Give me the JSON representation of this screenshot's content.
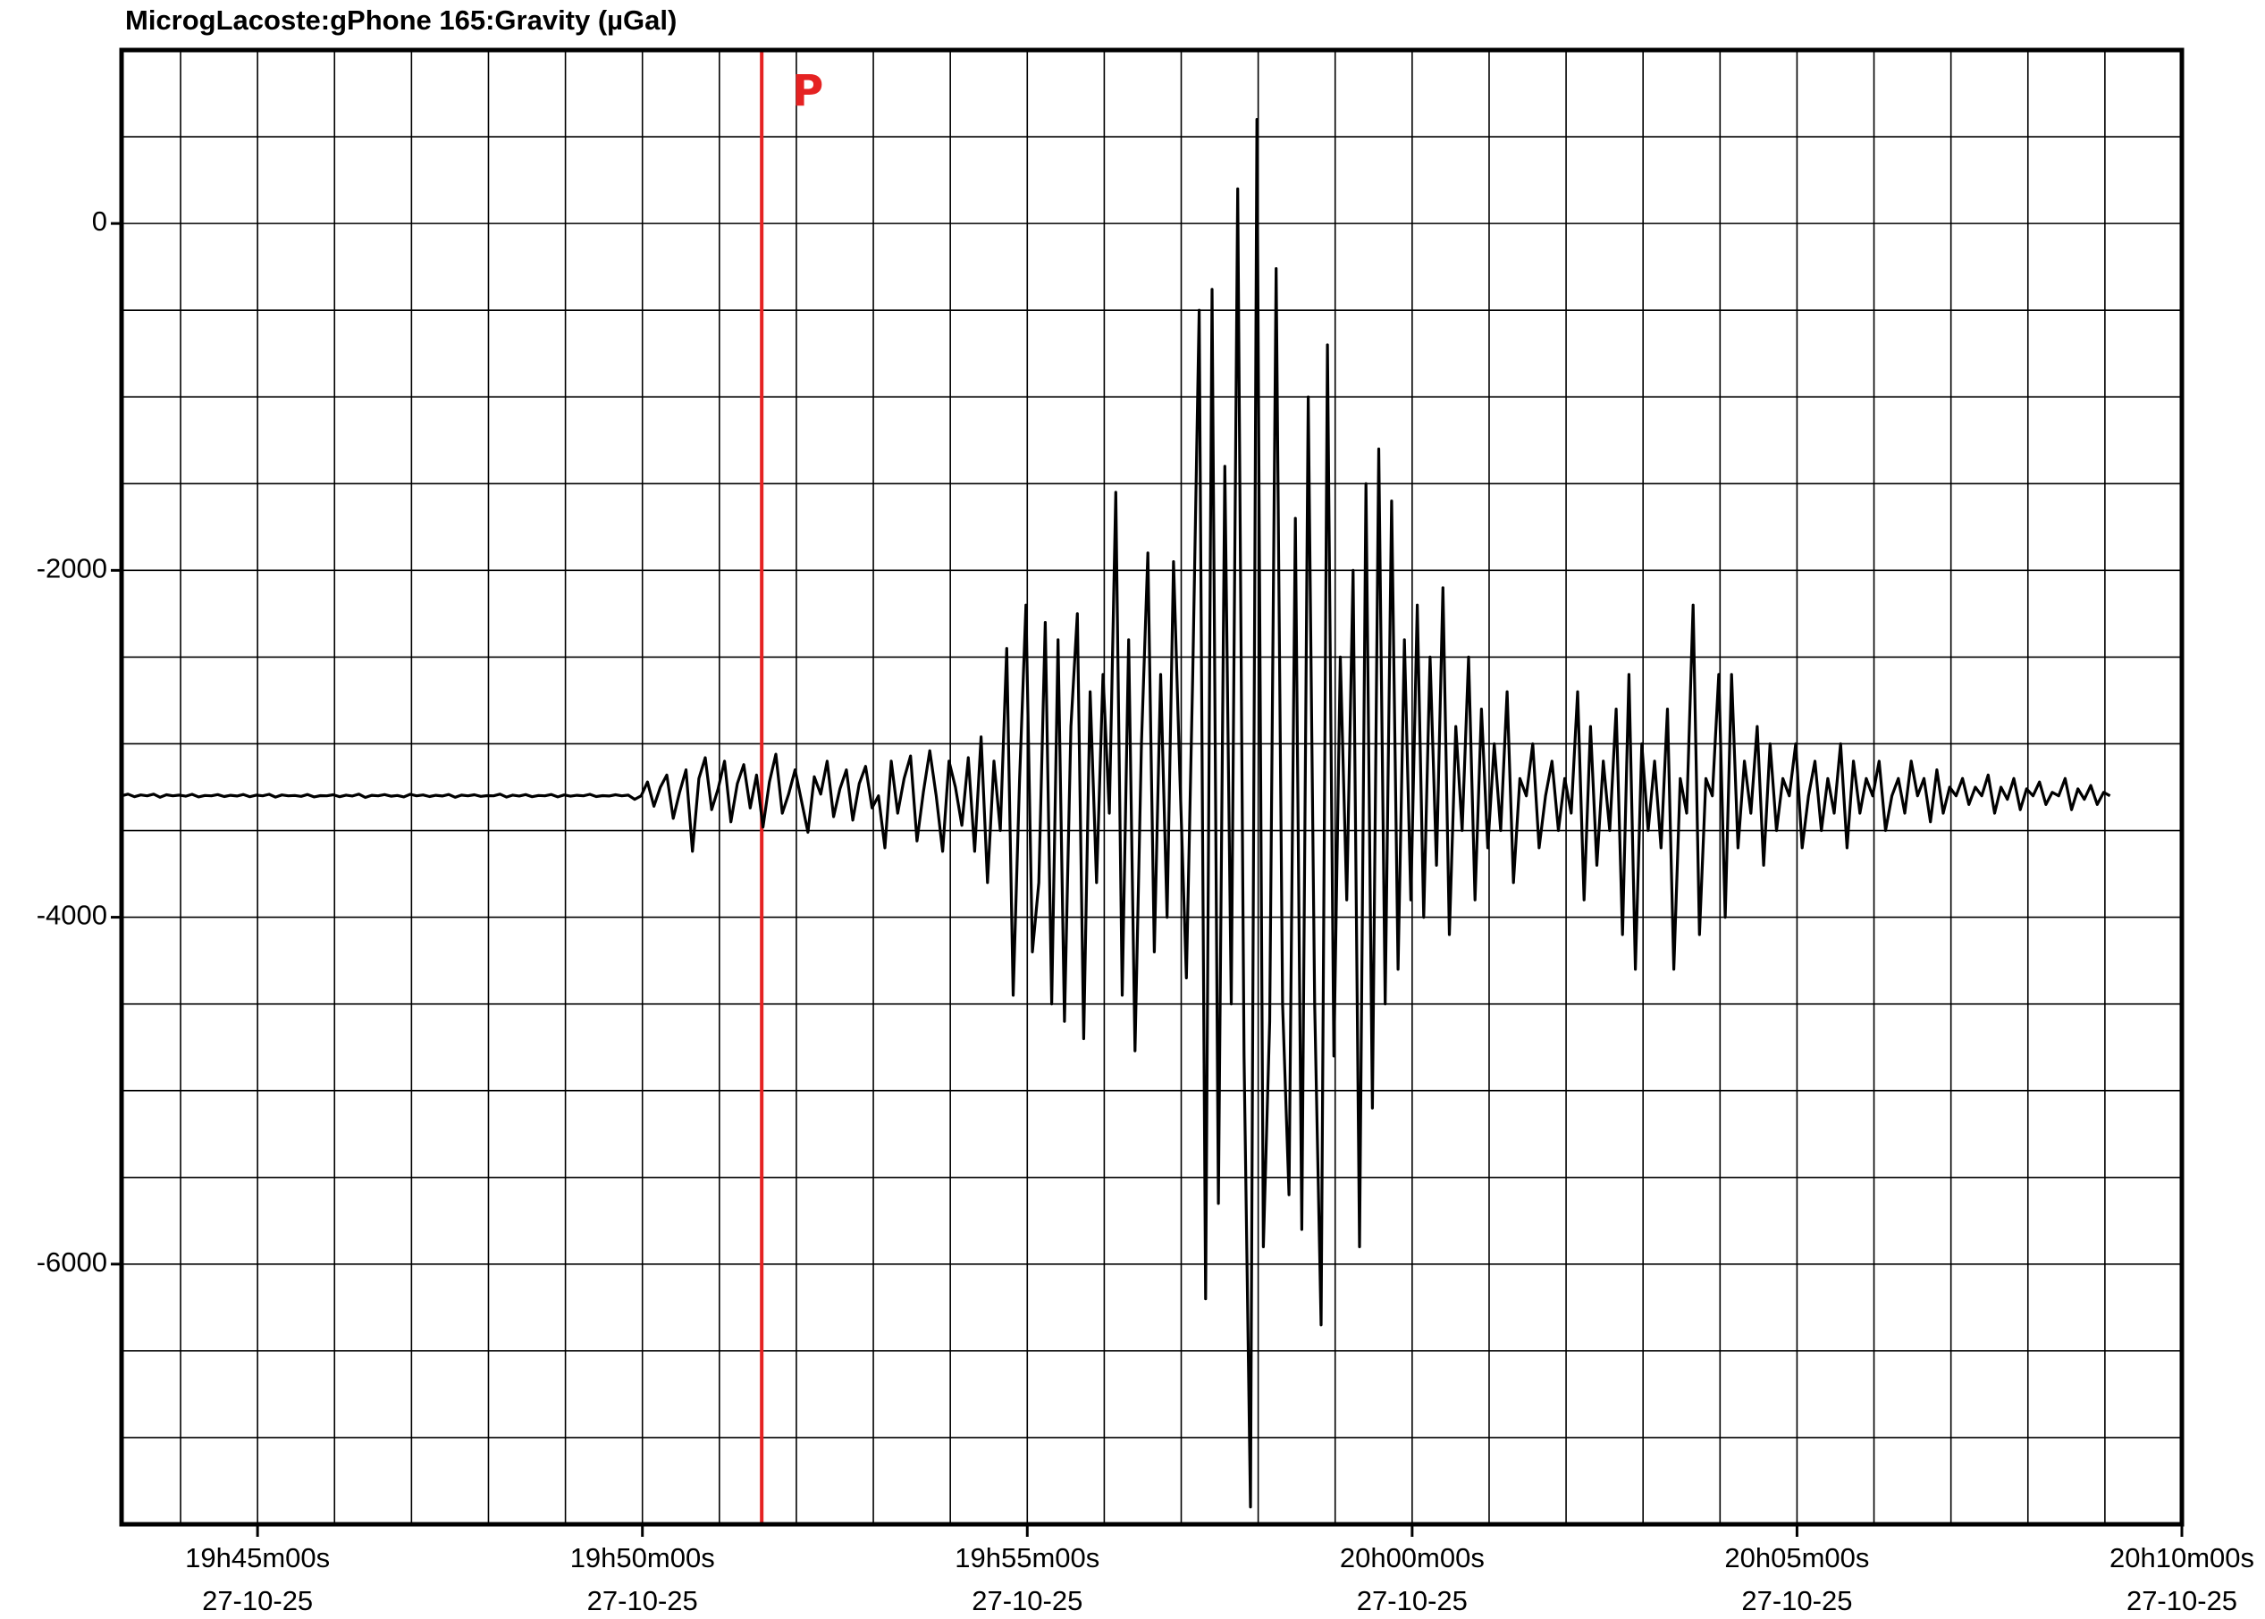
{
  "chart_data": {
    "type": "line",
    "title": "MicrogLacoste:gPhone 165:Gravity (µGal)",
    "xlabel": "",
    "ylabel": "",
    "x_range": [
      "19h43m14s",
      "20h10m00s"
    ],
    "ylim": [
      -7500,
      1000
    ],
    "grid": true,
    "y_ticks": [
      {
        "value": 0,
        "label": "0"
      },
      {
        "value": -2000,
        "label": "-2000"
      },
      {
        "value": -4000,
        "label": "-4000"
      },
      {
        "value": -6000,
        "label": "-6000"
      }
    ],
    "x_ticks": [
      {
        "time": "19h45m00s",
        "date": "27-10-25"
      },
      {
        "time": "19h50m00s",
        "date": "27-10-25"
      },
      {
        "time": "19h55m00s",
        "date": "27-10-25"
      },
      {
        "time": "20h00m00s",
        "date": "27-10-25"
      },
      {
        "time": "20h05m00s",
        "date": "27-10-25"
      },
      {
        "time": "20h10m00s",
        "date": "27-10-25"
      }
    ],
    "annotations": [
      {
        "label": "P",
        "time": "19h51m33s",
        "color": "#e52222"
      }
    ],
    "series": [
      {
        "color": "#000000",
        "time_start": "19h43m14s",
        "time_end": "20h10m00s",
        "sample_interval_s": 5,
        "values": [
          -3300,
          -3290,
          -3305,
          -3295,
          -3300,
          -3290,
          -3308,
          -3294,
          -3300,
          -3296,
          -3302,
          -3291,
          -3306,
          -3298,
          -3300,
          -3293,
          -3304,
          -3297,
          -3301,
          -3292,
          -3305,
          -3296,
          -3300,
          -3291,
          -3307,
          -3295,
          -3300,
          -3298,
          -3303,
          -3292,
          -3306,
          -3299,
          -3300,
          -3294,
          -3305,
          -3296,
          -3301,
          -3290,
          -3309,
          -3297,
          -3300,
          -3293,
          -3302,
          -3298,
          -3306,
          -3291,
          -3300,
          -3295,
          -3304,
          -3297,
          -3301,
          -3292,
          -3308,
          -3296,
          -3300,
          -3294,
          -3303,
          -3299,
          -3300,
          -3290,
          -3307,
          -3296,
          -3301,
          -3293,
          -3305,
          -3298,
          -3300,
          -3292,
          -3306,
          -3295,
          -3302,
          -3297,
          -3300,
          -3291,
          -3304,
          -3299,
          -3301,
          -3294,
          -3300,
          -3296,
          -3320,
          -3300,
          -3220,
          -3360,
          -3250,
          -3180,
          -3430,
          -3280,
          -3150,
          -3620,
          -3200,
          -3080,
          -3380,
          -3260,
          -3100,
          -3450,
          -3230,
          -3120,
          -3370,
          -3180,
          -3480,
          -3220,
          -3060,
          -3400,
          -3290,
          -3150,
          -3330,
          -3510,
          -3190,
          -3290,
          -3100,
          -3420,
          -3260,
          -3150,
          -3440,
          -3230,
          -3130,
          -3370,
          -3300,
          -3600,
          -3100,
          -3400,
          -3200,
          -3070,
          -3560,
          -3280,
          -3040,
          -3300,
          -3620,
          -3100,
          -3250,
          -3470,
          -3080,
          -3620,
          -2960,
          -3800,
          -3100,
          -3500,
          -2450,
          -4450,
          -3200,
          -2200,
          -4200,
          -3800,
          -2300,
          -4500,
          -2400,
          -4600,
          -2900,
          -2250,
          -4700,
          -2700,
          -3800,
          -2600,
          -3400,
          -1550,
          -4450,
          -2400,
          -4770,
          -3000,
          -1900,
          -4200,
          -2600,
          -4000,
          -1950,
          -3200,
          -4350,
          -2600,
          -500,
          -6200,
          -380,
          -5650,
          -1400,
          -4500,
          200,
          -4800,
          -7400,
          600,
          -5900,
          -4600,
          -260,
          -4500,
          -5600,
          -1700,
          -5800,
          -1000,
          -4500,
          -6350,
          -700,
          -4800,
          -2500,
          -3900,
          -2000,
          -5900,
          -1500,
          -5100,
          -1300,
          -4500,
          -1600,
          -4300,
          -2400,
          -3900,
          -2200,
          -4000,
          -2500,
          -3700,
          -2100,
          -4100,
          -2900,
          -3500,
          -2500,
          -3900,
          -2800,
          -3600,
          -3000,
          -3500,
          -2700,
          -3800,
          -3200,
          -3300,
          -3000,
          -3600,
          -3300,
          -3100,
          -3500,
          -3200,
          -3400,
          -2700,
          -3900,
          -2900,
          -3700,
          -3100,
          -3500,
          -2800,
          -4100,
          -2600,
          -4300,
          -3000,
          -3500,
          -3100,
          -3600,
          -2800,
          -4300,
          -3200,
          -3400,
          -2200,
          -4100,
          -3200,
          -3300,
          -2600,
          -4000,
          -2600,
          -3600,
          -3100,
          -3400,
          -2900,
          -3700,
          -3000,
          -3500,
          -3200,
          -3300,
          -3000,
          -3600,
          -3300,
          -3100,
          -3500,
          -3200,
          -3400,
          -3000,
          -3600,
          -3100,
          -3400,
          -3200,
          -3300,
          -3100,
          -3500,
          -3300,
          -3200,
          -3400,
          -3100,
          -3300,
          -3200,
          -3450,
          -3150,
          -3400,
          -3250,
          -3300,
          -3200,
          -3350,
          -3250,
          -3300,
          -3180,
          -3400,
          -3250,
          -3320,
          -3200,
          -3380,
          -3260,
          -3300,
          -3220,
          -3350,
          -3280,
          -3300,
          -3200,
          -3380,
          -3260,
          -3320,
          -3240,
          -3350,
          -3280,
          -3300
        ]
      }
    ]
  }
}
